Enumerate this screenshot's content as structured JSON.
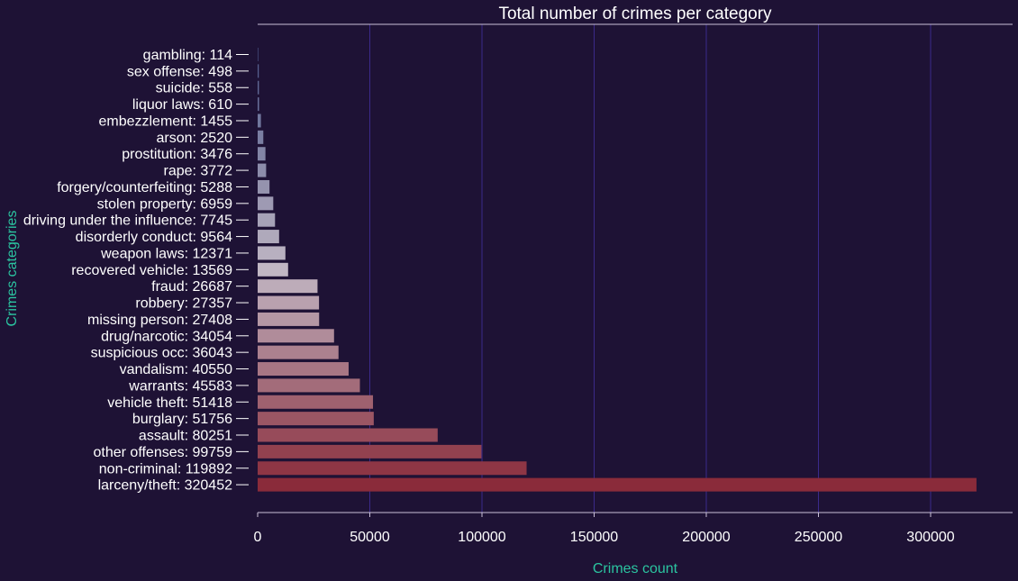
{
  "chart_data": {
    "type": "bar",
    "orientation": "horizontal",
    "title": "Total number of crimes per category",
    "xlabel": "Crimes count",
    "ylabel": "Crimes categories",
    "xlim": [
      0,
      336000
    ],
    "xticks": [
      0,
      50000,
      100000,
      150000,
      200000,
      250000,
      300000
    ],
    "grid": true,
    "colors": {
      "background": "#1e1235",
      "grid": "#3b2a8a",
      "axis": "#c9c0d8",
      "label_text": "#ffffff",
      "axis_title": "#2bc4a0",
      "bar_low": "#4e5a8c",
      "bar_mid": "#c1b7c4",
      "bar_high": "#8a2b3a"
    },
    "categories": [
      "gambling",
      "sex offense",
      "suicide",
      "liquor laws",
      "embezzlement",
      "arson",
      "prostitution",
      "rape",
      "forgery/counterfeiting",
      "stolen property",
      "driving under the influence",
      "disorderly conduct",
      "weapon laws",
      "recovered vehicle",
      "fraud",
      "robbery",
      "missing person",
      "drug/narcotic",
      "suspicious occ",
      "vandalism",
      "warrants",
      "vehicle theft",
      "burglary",
      "assault",
      "other offenses",
      "non-criminal",
      "larceny/theft"
    ],
    "values": [
      114,
      498,
      558,
      610,
      1455,
      2520,
      3476,
      3772,
      5288,
      6959,
      7745,
      9564,
      12371,
      13569,
      26687,
      27357,
      27408,
      34054,
      36043,
      40550,
      45583,
      51418,
      51756,
      80251,
      99759,
      119892,
      320452
    ],
    "labels": [
      "gambling: 114",
      "sex offense: 498",
      "suicide: 558",
      "liquor laws: 610",
      "embezzlement: 1455",
      "arson: 2520",
      "prostitution: 3476",
      "rape: 3772",
      "forgery/counterfeiting: 5288",
      "stolen property: 6959",
      "driving under the influence: 7745",
      "disorderly conduct: 9564",
      "weapon laws: 12371",
      "recovered vehicle: 13569",
      "fraud: 26687",
      "robbery: 27357",
      "missing person: 27408",
      "drug/narcotic: 34054",
      "suspicious occ: 36043",
      "vandalism: 40550",
      "warrants: 45583",
      "vehicle theft: 51418",
      "burglary: 51756",
      "assault: 80251",
      "other offenses: 99759",
      "non-criminal: 119892",
      "larceny/theft: 320452"
    ]
  }
}
